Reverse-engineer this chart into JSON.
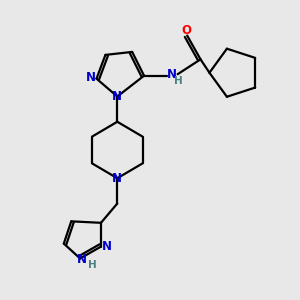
{
  "background_color": "#e8e8e8",
  "bond_color": "#000000",
  "atom_colors": {
    "N": "#0000cc",
    "O": "#ff0000",
    "H": "#4a8080",
    "C": "#000000"
  },
  "figsize": [
    3.0,
    3.0
  ],
  "dpi": 100
}
